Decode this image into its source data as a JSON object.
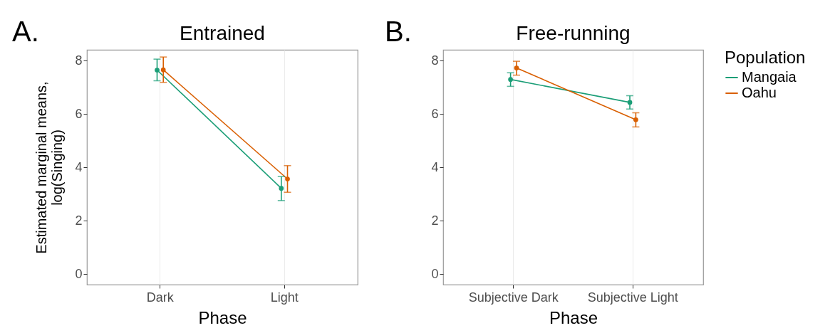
{
  "chart_data": [
    {
      "type": "line",
      "title": "Entrained",
      "xlabel": "Phase",
      "ylabel": "Estimated marginal means, log(Singing)",
      "categories": [
        "Dark",
        "Light"
      ],
      "series": [
        {
          "color": "#1b9e77",
          "values": [
            7.64,
            3.21
          ],
          "errors": [
            [
              7.24,
              8.05
            ],
            [
              2.75,
              3.65
            ]
          ]
        },
        {
          "color": "#d95f02",
          "values": [
            7.65,
            3.56
          ],
          "errors": [
            [
              7.18,
              8.13
            ],
            [
              3.06,
              4.06
            ]
          ]
        }
      ],
      "ylim": [
        -0.4,
        8.4
      ],
      "yticks": [
        0,
        2,
        4,
        6,
        8
      ],
      "grid": "x",
      "legend": false,
      "marker": "circle",
      "line_style": "solid",
      "annotations": [
        "A."
      ]
    },
    {
      "type": "line",
      "title": "Free-running",
      "xlabel": "Phase",
      "categories": [
        "Subjective Dark",
        "Subjective Light"
      ],
      "series": [
        {
          "name": "Mangaia",
          "color": "#1b9e77",
          "values": [
            7.29,
            6.43
          ],
          "errors": [
            [
              7.03,
              7.54
            ],
            [
              6.18,
              6.68
            ]
          ]
        },
        {
          "name": "Oahu",
          "color": "#d95f02",
          "values": [
            7.72,
            5.78
          ],
          "errors": [
            [
              7.45,
              7.97
            ],
            [
              5.51,
              6.04
            ]
          ]
        }
      ],
      "ylim": [
        -0.4,
        8.4
      ],
      "yticks": [
        0,
        2,
        4,
        6,
        8
      ],
      "grid": "x",
      "legend": "right",
      "legend_title": "Population",
      "marker": "circle",
      "line_style": "solid",
      "annotations": [
        "B."
      ]
    }
  ]
}
